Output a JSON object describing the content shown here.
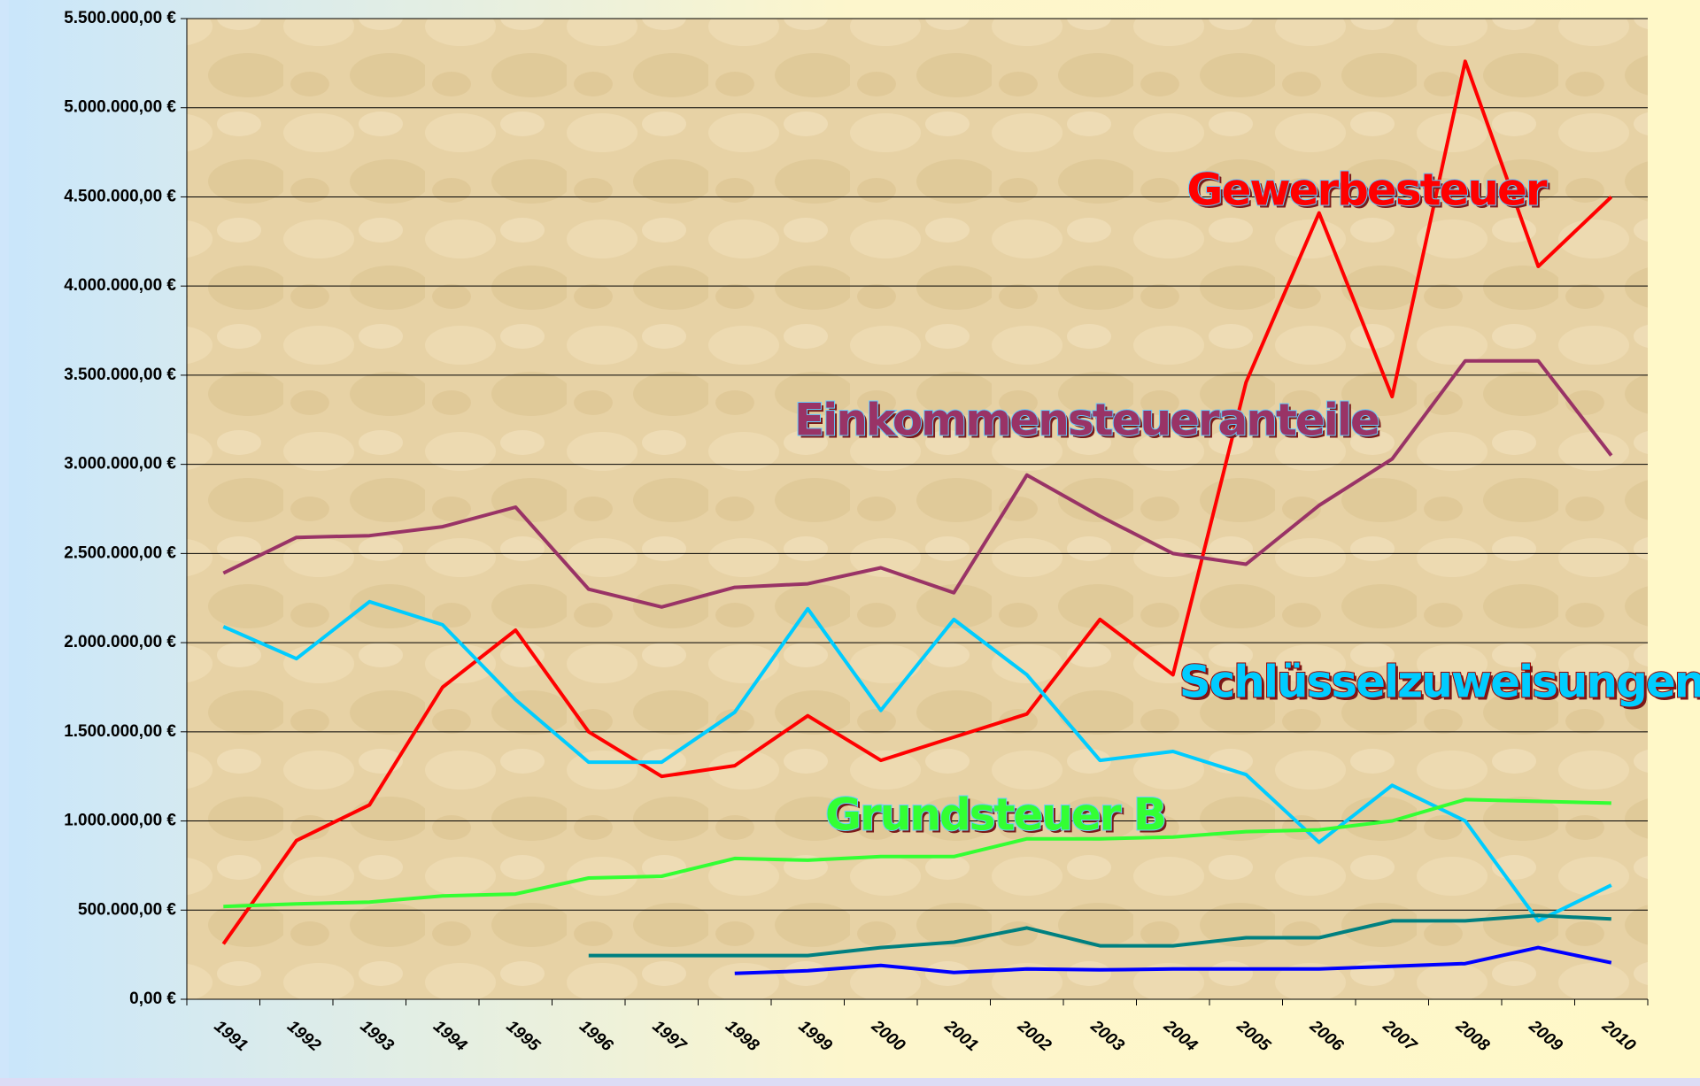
{
  "chart_data": {
    "type": "line",
    "categories": [
      "1991",
      "1992",
      "1993",
      "1994",
      "1995",
      "1996",
      "1997",
      "1998",
      "1999",
      "2000",
      "2001",
      "2002",
      "2003",
      "2004",
      "2005",
      "2006",
      "2007",
      "2008",
      "2009",
      "2010"
    ],
    "series": [
      {
        "name": "Gewerbesteuer",
        "color": "#ff0000",
        "values": [
          310000,
          890000,
          1090000,
          1750000,
          2070000,
          1500000,
          1250000,
          1310000,
          1590000,
          1340000,
          1470000,
          1600000,
          2130000,
          1820000,
          3460000,
          4410000,
          3380000,
          5260000,
          4110000,
          4500000
        ]
      },
      {
        "name": "Einkommensteueranteile",
        "color": "#993366",
        "values": [
          2390000,
          2590000,
          2600000,
          2650000,
          2760000,
          2300000,
          2200000,
          2310000,
          2330000,
          2420000,
          2280000,
          2940000,
          2710000,
          2500000,
          2440000,
          2770000,
          3030000,
          3580000,
          3580000,
          3050000
        ]
      },
      {
        "name": "Schlüsselzuweisungen",
        "color": "#00ccff",
        "values": [
          2090000,
          1910000,
          2230000,
          2100000,
          1680000,
          1330000,
          1330000,
          1610000,
          2190000,
          1620000,
          2130000,
          1820000,
          1340000,
          1390000,
          1260000,
          880000,
          1200000,
          1000000,
          440000,
          640000
        ]
      },
      {
        "name": "Grundsteuer B",
        "color": "#33ff33",
        "values": [
          520000,
          535000,
          545000,
          580000,
          590000,
          680000,
          690000,
          790000,
          780000,
          800000,
          800000,
          900000,
          900000,
          910000,
          940000,
          950000,
          1000000,
          1120000,
          1110000,
          1100000
        ]
      },
      {
        "color": "#008080",
        "values": [
          null,
          null,
          null,
          null,
          null,
          245000,
          245000,
          245000,
          245000,
          290000,
          320000,
          400000,
          300000,
          300000,
          345000,
          345000,
          440000,
          440000,
          470000,
          450000
        ]
      },
      {
        "color": "#0000ff",
        "values": [
          null,
          null,
          null,
          null,
          null,
          null,
          null,
          145000,
          160000,
          190000,
          150000,
          170000,
          165000,
          170000,
          170000,
          170000,
          185000,
          200000,
          290000,
          205000
        ]
      }
    ],
    "ylim": [
      0,
      5500000
    ],
    "yticks": [
      {
        "value": 0,
        "label": "0,00 €"
      },
      {
        "value": 500000,
        "label": "500.000,00 €"
      },
      {
        "value": 1000000,
        "label": "1.000.000,00 €"
      },
      {
        "value": 1500000,
        "label": "1.500.000,00 €"
      },
      {
        "value": 2000000,
        "label": "2.000.000,00 €"
      },
      {
        "value": 2500000,
        "label": "2.500.000,00 €"
      },
      {
        "value": 3000000,
        "label": "3.000.000,00 €"
      },
      {
        "value": 3500000,
        "label": "3.500.000,00 €"
      },
      {
        "value": 4000000,
        "label": "4.000.000,00 €"
      },
      {
        "value": 4500000,
        "label": "4.500.000,00 €"
      },
      {
        "value": 5000000,
        "label": "5.000.000,00 €"
      },
      {
        "value": 5500000,
        "label": "5.500.000,00 €"
      }
    ],
    "grid": true
  }
}
